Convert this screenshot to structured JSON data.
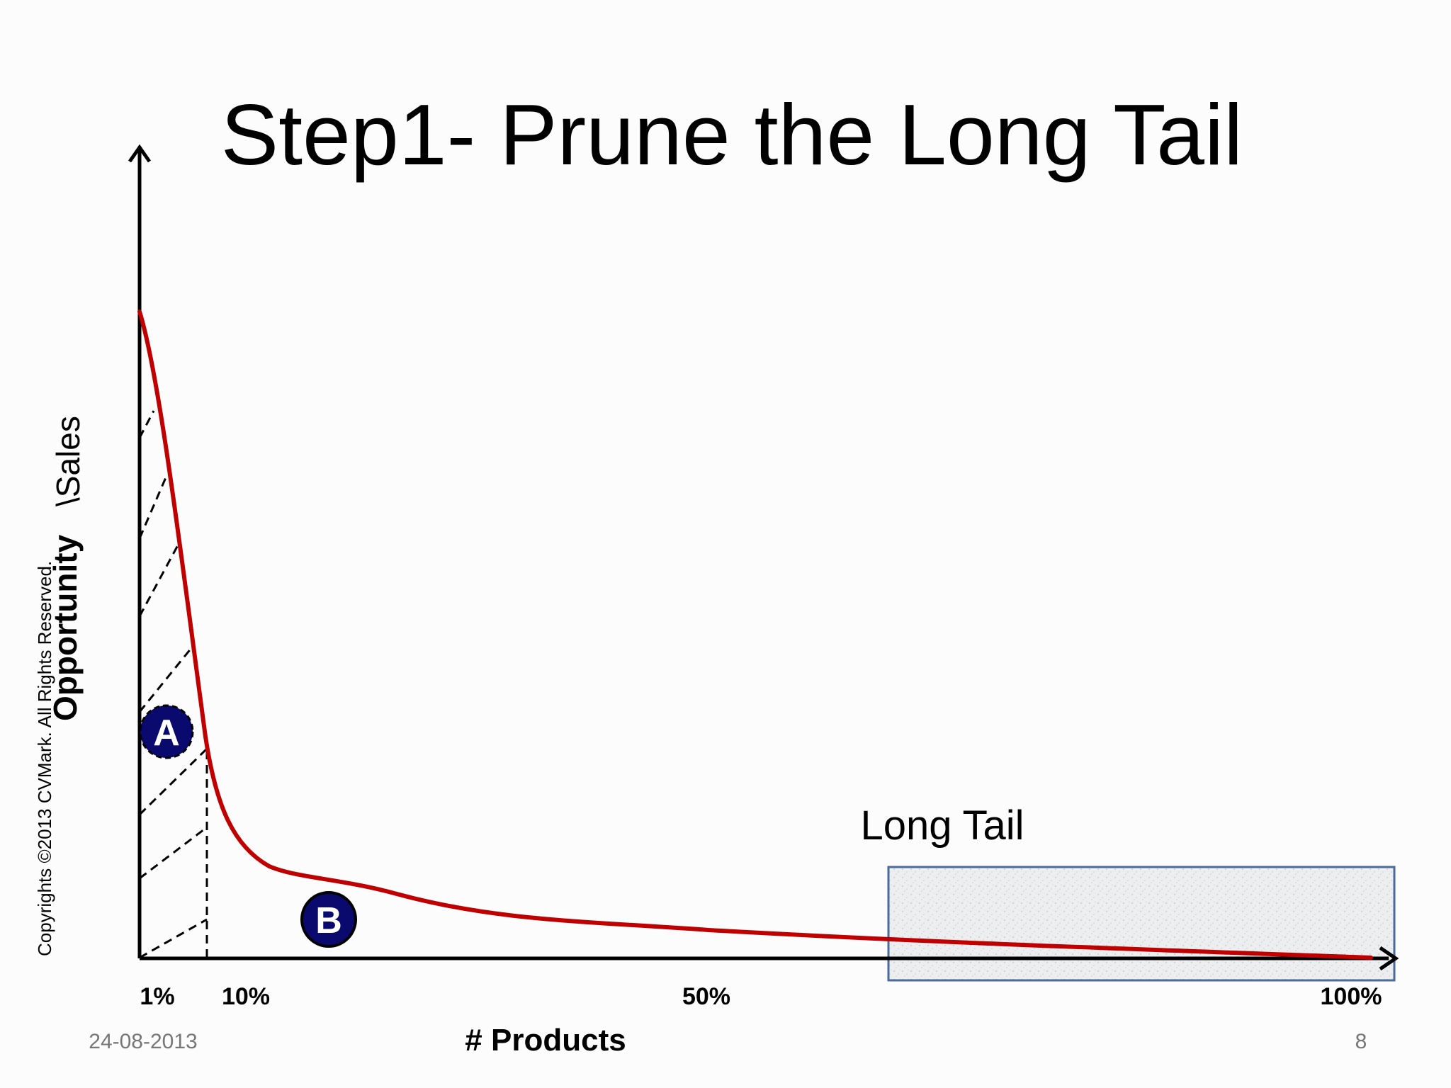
{
  "slide": {
    "title": "Step1- Prune the Long Tail",
    "date": "24-08-2013",
    "page_number": "8"
  },
  "diagram": {
    "y_axis_label_part1": "Opportunity",
    "y_axis_label_part2": "\\Sales",
    "x_axis_label": "# Products",
    "x_ticks": [
      "1%",
      "10%",
      "50%",
      "100%"
    ],
    "region_a_label": "A",
    "region_b_label": "B",
    "long_tail_label": "Long Tail",
    "copyright": "Copyrights  ©2013 CVMark. All Rights Reserved.",
    "curve_color": "#c00000",
    "badge_color": "#0a0a6e",
    "box_border_color": "#4a6a9a"
  }
}
